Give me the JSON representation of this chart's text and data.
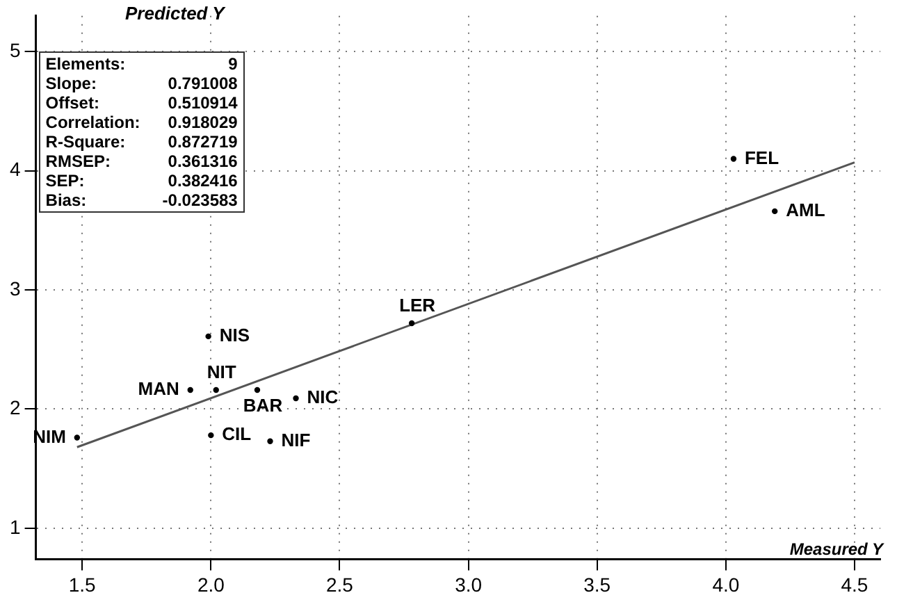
{
  "chart_data": {
    "type": "scatter",
    "xlabel": "Measured Y",
    "ylabel": "Predicted Y",
    "xlim": [
      1.32,
      4.6
    ],
    "ylim": [
      0.74,
      5.3
    ],
    "xticks": [
      {
        "value": 1.5,
        "label": "1.5"
      },
      {
        "value": 2,
        "label": "2.0"
      },
      {
        "value": 2.5,
        "label": "2.5"
      },
      {
        "value": 3,
        "label": "3.0"
      },
      {
        "value": 3.5,
        "label": "3.5"
      },
      {
        "value": 4,
        "label": "4.0"
      },
      {
        "value": 4.5,
        "label": "4.5"
      }
    ],
    "yticks": [
      1,
      2,
      3,
      4,
      5
    ],
    "grid": true,
    "legend": false,
    "series": [
      {
        "color": "#000000",
        "marker": "circle",
        "x": [
          1.48,
          1.92,
          2.02,
          1.99,
          2.18,
          2.33,
          2.0,
          2.23,
          2.78,
          4.03,
          4.19
        ],
        "values": [
          1.76,
          2.16,
          2.16,
          2.61,
          2.16,
          2.09,
          1.78,
          1.73,
          2.72,
          4.1,
          3.66
        ]
      },
      {
        "type": "line",
        "color": "#555555",
        "marker": "none",
        "x": [
          1.48,
          4.5
        ],
        "values": [
          1.68,
          4.07
        ]
      }
    ],
    "annotations": [
      "Elements: 9",
      "Slope: 0.791008",
      "Offset: 0.510914",
      "Correlation: 0.918029",
      "R-Square: 0.872719",
      "RMSEP: 0.361316",
      "SEP: 0.382416",
      "Bias: -0.023583",
      {
        "text": "NIM",
        "x": 1.48,
        "y": 1.76
      },
      {
        "text": "MAN",
        "x": 1.92,
        "y": 2.16
      },
      {
        "text": "NIT",
        "x": 2.02,
        "y": 2.16
      },
      {
        "text": "NIS",
        "x": 1.99,
        "y": 2.61
      },
      {
        "text": "BAR",
        "x": 2.18,
        "y": 2.16
      },
      {
        "text": "NIC",
        "x": 2.33,
        "y": 2.09
      },
      {
        "text": "CIL",
        "x": 2.0,
        "y": 1.78
      },
      {
        "text": "NIF",
        "x": 2.23,
        "y": 1.73
      },
      {
        "text": "LER",
        "x": 2.78,
        "y": 2.72
      },
      {
        "text": "FEL",
        "x": 4.03,
        "y": 4.1
      },
      {
        "text": "AML",
        "x": 4.19,
        "y": 3.66
      }
    ]
  }
}
